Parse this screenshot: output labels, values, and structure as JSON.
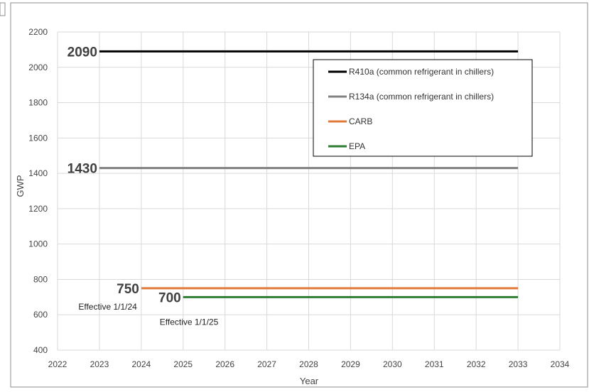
{
  "chart_data": {
    "type": "line",
    "title": "",
    "xlabel": "Year",
    "ylabel": "GWP",
    "xlim": [
      2022,
      2034
    ],
    "ylim": [
      400,
      2200
    ],
    "x_ticks": [
      "2022",
      "2023",
      "2024",
      "2025",
      "2026",
      "2027",
      "2028",
      "2029",
      "2030",
      "2031",
      "2032",
      "2033",
      "2034"
    ],
    "y_ticks": [
      "400",
      "600",
      "800",
      "1000",
      "1200",
      "1400",
      "1600",
      "1800",
      "2000",
      "2200"
    ],
    "grid": true,
    "legend_position": "top-right",
    "series": [
      {
        "name": "R410a (common refrigerant in chillers)",
        "color": "#000000",
        "x": [
          2023,
          2033
        ],
        "y": [
          2090,
          2090
        ]
      },
      {
        "name": "R134a (common refrigerant in chillers)",
        "color": "#808080",
        "x": [
          2023,
          2033
        ],
        "y": [
          1430,
          1430
        ]
      },
      {
        "name": "CARB",
        "color": "#e07b39",
        "x": [
          2024,
          2033
        ],
        "y": [
          750,
          750
        ]
      },
      {
        "name": "EPA",
        "color": "#2e7d32",
        "x": [
          2025,
          2033
        ],
        "y": [
          700,
          700
        ]
      }
    ],
    "data_labels": [
      {
        "series": 0,
        "text": "2090",
        "x": 2023,
        "y": 2090
      },
      {
        "series": 1,
        "text": "1430",
        "x": 2023,
        "y": 1430
      },
      {
        "series": 2,
        "text": "750",
        "x": 2024,
        "y": 750
      },
      {
        "series": 3,
        "text": "700",
        "x": 2025,
        "y": 700
      }
    ],
    "annotations": [
      {
        "text": "Effective 1/1/24",
        "x": 2024,
        "y": 750
      },
      {
        "text": "Effective 1/1/25",
        "x": 2025,
        "y": 700
      }
    ]
  }
}
